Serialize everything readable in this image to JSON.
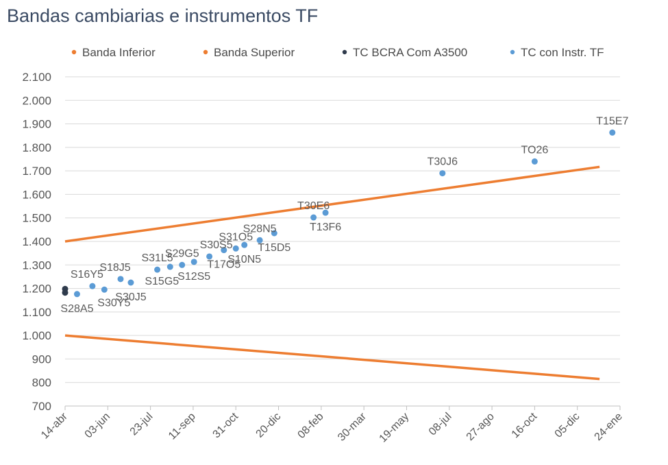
{
  "chart_data": {
    "type": "scatter",
    "title": "Bandas cambiarias e instrumentos TF",
    "xlabel": "",
    "ylabel": "",
    "x_axis": {
      "type": "date",
      "range": [
        "2025-04-14",
        "2027-01-24"
      ],
      "tick_dates": [
        "2025-04-14",
        "2025-06-03",
        "2025-07-23",
        "2025-09-11",
        "2025-10-31",
        "2025-12-20",
        "2026-02-08",
        "2026-03-30",
        "2026-05-19",
        "2026-07-08",
        "2026-08-27",
        "2026-10-16",
        "2026-12-05",
        "2027-01-24"
      ],
      "tick_labels": [
        "14-abr",
        "03-jun",
        "23-jul",
        "11-sep",
        "31-oct",
        "20-dic",
        "08-feb",
        "30-mar",
        "19-may",
        "08-jul",
        "27-ago",
        "16-oct",
        "05-dic",
        "24-ene"
      ]
    },
    "y_axis": {
      "range": [
        700,
        2100
      ],
      "tick_values": [
        700,
        800,
        900,
        1000,
        1100,
        1200,
        1300,
        1400,
        1500,
        1600,
        1700,
        1800,
        1900,
        2000,
        2100
      ],
      "tick_labels": [
        "700",
        "800",
        "900",
        "1.000",
        "1.100",
        "1.200",
        "1.300",
        "1.400",
        "1.500",
        "1.600",
        "1.700",
        "1.800",
        "1.900",
        "2.000",
        "2.100"
      ],
      "grid": true
    },
    "legend": {
      "position": "top",
      "entries": [
        "Banda Inferior",
        "Banda Superior",
        "TC BCRA Com A3500",
        "TC con Instr. TF"
      ]
    },
    "series": [
      {
        "name": "Banda Inferior",
        "kind": "line",
        "color": "#ED7D31",
        "points": [
          {
            "x": "2025-04-14",
            "y": 1000
          },
          {
            "x": "2026-12-31",
            "y": 815
          }
        ]
      },
      {
        "name": "Banda Superior",
        "kind": "line",
        "color": "#ED7D31",
        "points": [
          {
            "x": "2025-04-14",
            "y": 1400
          },
          {
            "x": "2026-12-31",
            "y": 1717
          }
        ]
      },
      {
        "name": "TC BCRA Com A3500",
        "kind": "scatter",
        "color": "#2F3B4C",
        "points": [
          {
            "x": "2025-04-14",
            "y": 1198
          },
          {
            "x": "2025-04-14",
            "y": 1182
          }
        ]
      },
      {
        "name": "TC con Instr. TF",
        "kind": "scatter",
        "color": "#5B9BD5",
        "points": [
          {
            "x": "2025-04-28",
            "y": 1176,
            "label": "S28A5",
            "label_pos": "below"
          },
          {
            "x": "2025-05-30",
            "y": 1195,
            "label": "S30Y5",
            "label_pos": "below-right"
          },
          {
            "x": "2025-05-16",
            "y": 1210,
            "label": "S16Y5",
            "label_pos": "above-left"
          },
          {
            "x": "2025-06-30",
            "y": 1225,
            "label": "S30J5",
            "label_pos": "below"
          },
          {
            "x": "2025-06-18",
            "y": 1240,
            "label": "S18J5",
            "label_pos": "above-left"
          },
          {
            "x": "2025-07-31",
            "y": 1280,
            "label": "S31L5",
            "label_pos": "above"
          },
          {
            "x": "2025-08-15",
            "y": 1292,
            "label": "S15G5",
            "label_pos": "below-left"
          },
          {
            "x": "2025-08-29",
            "y": 1300,
            "label": "S29G5",
            "label_pos": "above"
          },
          {
            "x": "2025-09-12",
            "y": 1313,
            "label": "S12S5",
            "label_pos": "below"
          },
          {
            "x": "2025-09-30",
            "y": 1336,
            "label": "S30S5",
            "label_pos": "above-right"
          },
          {
            "x": "2025-10-17",
            "y": 1363,
            "label": "T17O5",
            "label_pos": "below"
          },
          {
            "x": "2025-10-31",
            "y": 1370,
            "label": "S31O5",
            "label_pos": "above"
          },
          {
            "x": "2025-11-10",
            "y": 1385,
            "label": "S10N5",
            "label_pos": "below"
          },
          {
            "x": "2025-11-28",
            "y": 1405,
            "label": "S28N5",
            "label_pos": "above"
          },
          {
            "x": "2025-12-15",
            "y": 1435,
            "label": "T15D5",
            "label_pos": "below"
          },
          {
            "x": "2026-01-30",
            "y": 1502,
            "label": "T30E6",
            "label_pos": "above"
          },
          {
            "x": "2026-02-13",
            "y": 1522,
            "label": "T13F6",
            "label_pos": "below"
          },
          {
            "x": "2026-06-30",
            "y": 1690,
            "label": "T30J6",
            "label_pos": "above"
          },
          {
            "x": "2026-10-16",
            "y": 1740,
            "label": "TO26",
            "label_pos": "above"
          },
          {
            "x": "2027-01-15",
            "y": 1863,
            "label": "T15E7",
            "label_pos": "above"
          }
        ]
      }
    ]
  }
}
